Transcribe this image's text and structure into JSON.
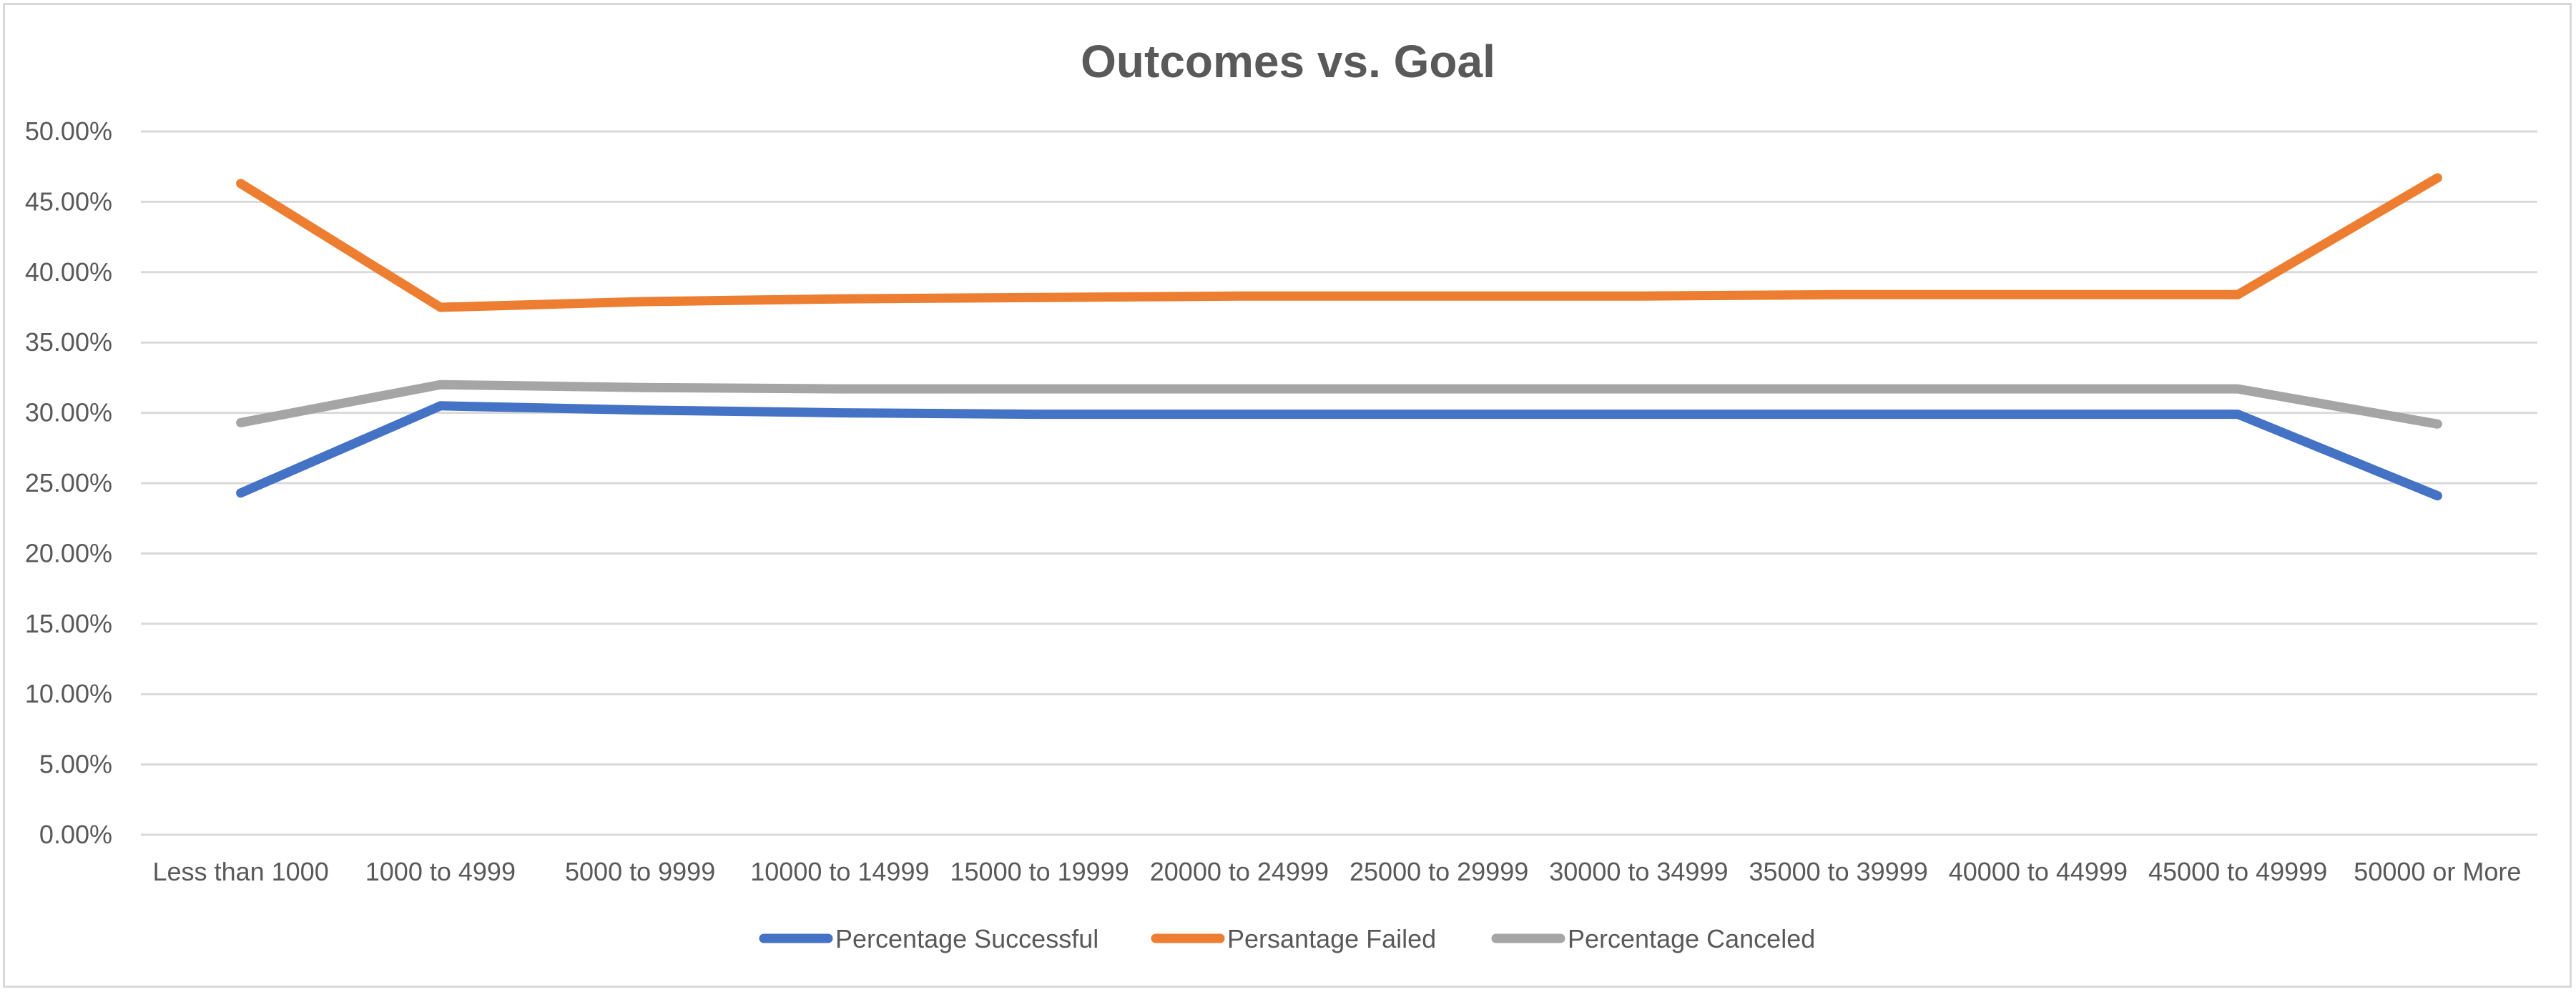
{
  "chart_data": {
    "type": "line",
    "title": "Outcomes vs. Goal",
    "xlabel": "",
    "ylabel": "",
    "categories": [
      "Less than 1000",
      "1000 to 4999",
      "5000 to 9999",
      "10000 to 14999",
      "15000 to 19999",
      "20000 to 24999",
      "25000 to 29999",
      "30000 to 34999",
      "35000 to 39999",
      "40000 to 44999",
      "45000 to 49999",
      "50000 or More"
    ],
    "ylim": [
      0,
      50
    ],
    "yticks": [
      0,
      5,
      10,
      15,
      20,
      25,
      30,
      35,
      40,
      45,
      50
    ],
    "ytick_labels": [
      "0.00%",
      "5.00%",
      "10.00%",
      "15.00%",
      "20.00%",
      "25.00%",
      "30.00%",
      "35.00%",
      "40.00%",
      "45.00%",
      "50.00%"
    ],
    "grid": true,
    "legend_position": "bottom",
    "series": [
      {
        "name": "Percentage Successful",
        "color": "#4472c4",
        "values": [
          24.3,
          30.5,
          30.2,
          30.0,
          29.9,
          29.9,
          29.9,
          29.9,
          29.9,
          29.9,
          29.9,
          24.1
        ]
      },
      {
        "name": "Persantage Failed",
        "color": "#ed7d31",
        "values": [
          46.3,
          37.5,
          37.9,
          38.1,
          38.2,
          38.3,
          38.3,
          38.3,
          38.4,
          38.4,
          38.4,
          46.7
        ]
      },
      {
        "name": "Percentage Canceled",
        "color": "#a5a5a5",
        "values": [
          29.3,
          32.0,
          31.8,
          31.7,
          31.7,
          31.7,
          31.7,
          31.7,
          31.7,
          31.7,
          31.7,
          29.2
        ]
      }
    ]
  }
}
